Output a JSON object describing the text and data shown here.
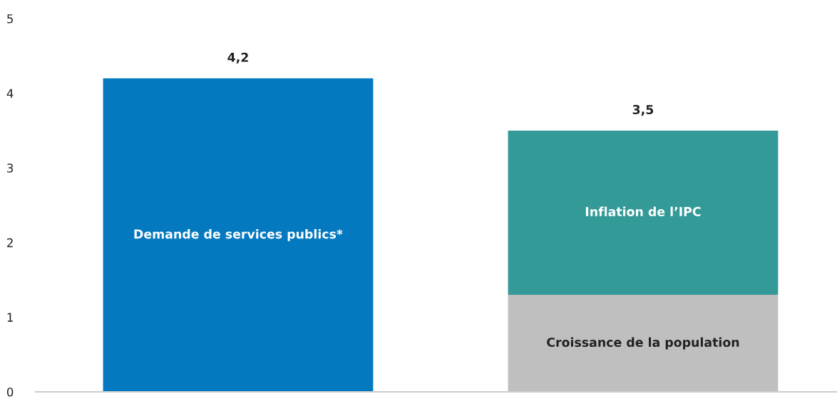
{
  "chart_data": {
    "type": "bar",
    "stacked": true,
    "categories": [
      null,
      null
    ],
    "series": [
      {
        "name": "Demande de services publics*",
        "color": "#0479c0",
        "values": [
          4.2,
          null
        ]
      },
      {
        "name": "Croissance de la population",
        "color": "#bfbfbf",
        "values": [
          null,
          1.3
        ]
      },
      {
        "name": "Inflation de l’IPC",
        "color": "#349a98",
        "values": [
          null,
          2.2
        ]
      }
    ],
    "totals": [
      "4,2",
      "3,5"
    ],
    "ylim": [
      0,
      5
    ],
    "yticks": [
      0,
      1,
      2,
      3,
      4,
      5
    ],
    "grid": false,
    "legend": false
  }
}
